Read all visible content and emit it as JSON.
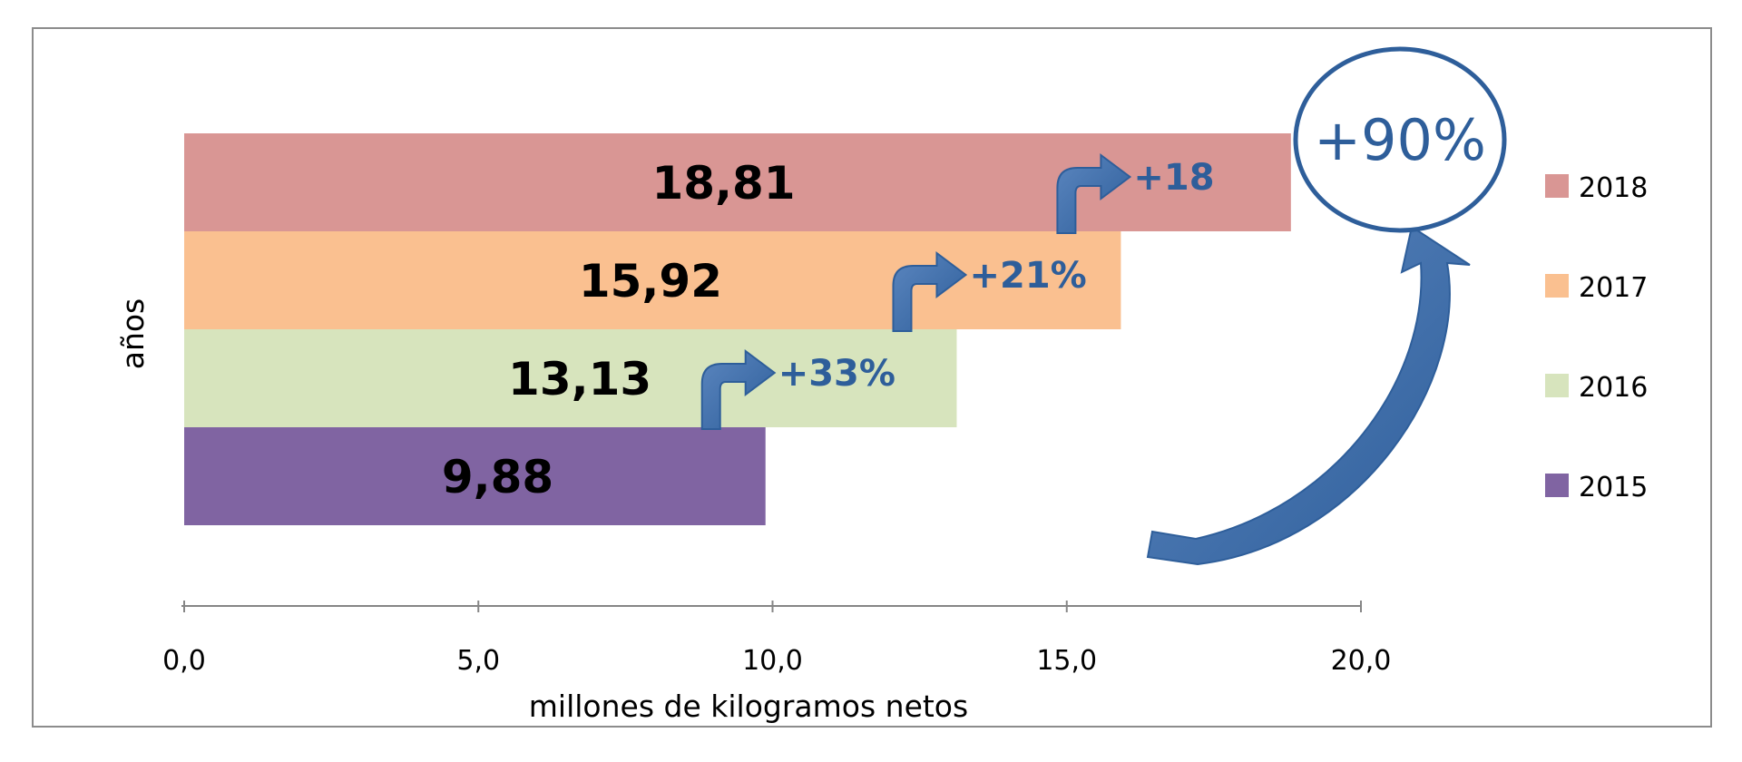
{
  "chart_data": {
    "type": "bar",
    "orientation": "horizontal",
    "title": "",
    "xlabel": "millones de kilogramos netos",
    "ylabel": "años",
    "xlim": [
      0,
      20
    ],
    "xticks": [
      "0,0",
      "5,0",
      "10,0",
      "15,0",
      "20,0"
    ],
    "series": [
      {
        "name": "2015",
        "value": 9.88,
        "label": "9,88",
        "color": "#8064A2"
      },
      {
        "name": "2016",
        "value": 13.13,
        "label": "13,13",
        "color": "#D7E4BD"
      },
      {
        "name": "2017",
        "value": 15.92,
        "label": "15,92",
        "color": "#FAC090"
      },
      {
        "name": "2018",
        "value": 18.81,
        "label": "18,81",
        "color": "#D99694"
      }
    ],
    "growth_annotations": [
      {
        "from": "2015",
        "to": "2016",
        "text": "+33%"
      },
      {
        "from": "2016",
        "to": "2017",
        "text": "+21%"
      },
      {
        "from": "2017",
        "to": "2018",
        "text": "+18"
      }
    ],
    "total_growth": {
      "text": "+90%"
    },
    "legend": {
      "placement": "right",
      "entries": [
        "2018",
        "2017",
        "2016",
        "2015"
      ]
    },
    "annotation_color": "#2E5E9A"
  }
}
